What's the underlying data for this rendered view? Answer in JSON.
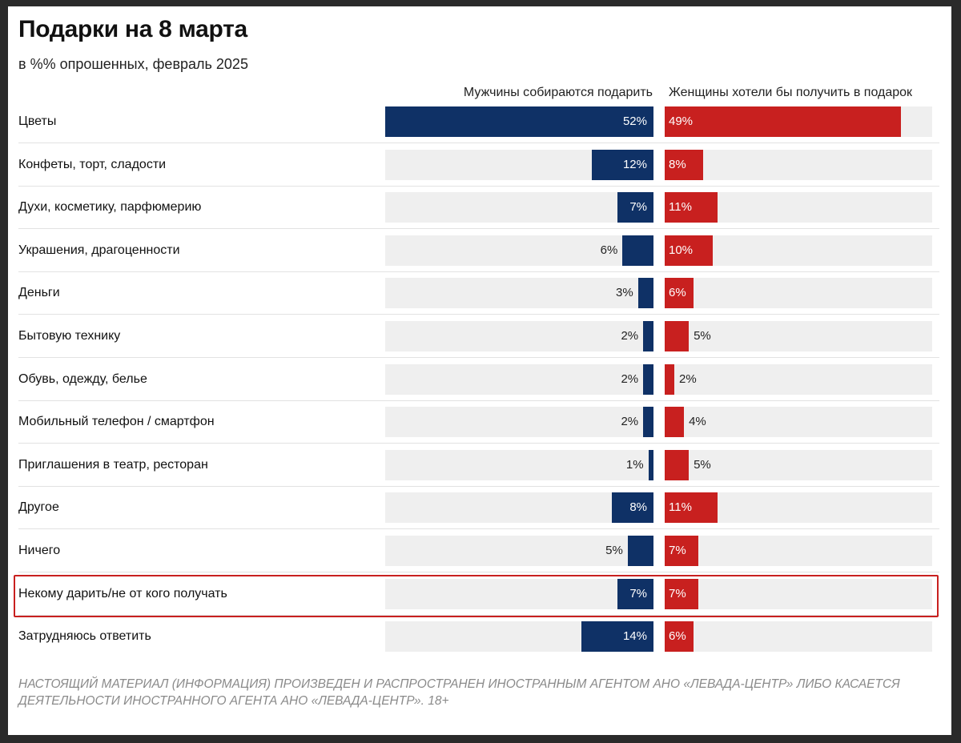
{
  "chart_data": {
    "type": "bar",
    "orientation": "horizontal-diverging",
    "title": "Подарки на 8 марта",
    "subtitle": "в %% опрошенных, февраль 2025",
    "series": [
      {
        "name": "Мужчины собираются подарить",
        "color": "#0f3166",
        "values": [
          52,
          12,
          7,
          6,
          3,
          2,
          2,
          2,
          1,
          8,
          5,
          7,
          14
        ]
      },
      {
        "name": "Женщины хотели бы получить в подарок",
        "color": "#c8201f",
        "values": [
          49,
          8,
          11,
          10,
          6,
          5,
          2,
          4,
          5,
          11,
          7,
          7,
          6
        ]
      }
    ],
    "categories": [
      "Цветы",
      "Конфеты, торт, сладости",
      "Духи, косметику, парфюмерию",
      "Украшения, драгоценности",
      "Деньги",
      "Бытовую технику",
      "Обувь, одежду, белье",
      "Мобильный телефон / смартфон",
      "Приглашения в театр, ресторан",
      "Другое",
      "Ничего",
      "Некому дарить/не от кого получать",
      "Затрудняюсь ответить"
    ],
    "labels_men": [
      "52%",
      "12%",
      "7%",
      "6%",
      "3%",
      "2%",
      "2%",
      "2%",
      "1%",
      "8%",
      "5%",
      "7%",
      "14%"
    ],
    "labels_women": [
      "49%",
      "8%",
      "11%",
      "10%",
      "6%",
      "5%",
      "2%",
      "4%",
      "5%",
      "11%",
      "7%",
      "7%",
      "6%"
    ],
    "highlighted_category": "Некому дарить/не от кого получать",
    "xlim": [
      0,
      52
    ]
  },
  "disclaimer": "НАСТОЯЩИЙ МАТЕРИАЛ (ИНФОРМАЦИЯ) ПРОИЗВЕДЕН И РАСПРОСТРАНЕН ИНОСТРАННЫМ АГЕНТОМ АНО «ЛЕВАДА-ЦЕНТР» ЛИБО КАСАЕТСЯ ДЕЯТЕЛЬНОСТИ ИНОСТРАННОГО АГЕНТА АНО «ЛЕВАДА-ЦЕНТР». 18+"
}
